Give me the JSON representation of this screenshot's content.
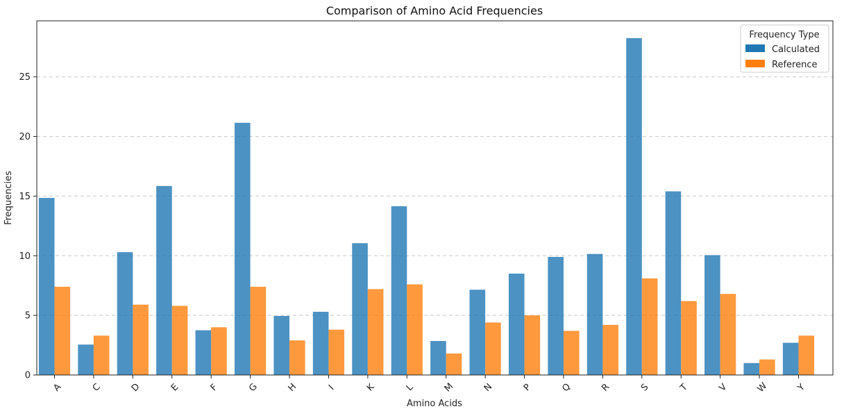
{
  "chart_data": {
    "type": "bar",
    "title": "Comparison of Amino Acid Frequencies",
    "xlabel": "Amino Acids",
    "ylabel": "Frequencies",
    "categories": [
      "A",
      "C",
      "D",
      "E",
      "F",
      "G",
      "H",
      "I",
      "K",
      "L",
      "M",
      "N",
      "P",
      "Q",
      "R",
      "S",
      "T",
      "V",
      "W",
      "Y"
    ],
    "series": [
      {
        "name": "Calculated",
        "color": "#1f77b4",
        "values": [
          14.85,
          2.55,
          10.3,
          15.85,
          3.75,
          21.15,
          4.95,
          5.3,
          11.05,
          14.15,
          2.85,
          7.15,
          8.5,
          9.9,
          10.15,
          28.25,
          15.4,
          10.05,
          1.0,
          2.7
        ]
      },
      {
        "name": "Reference",
        "color": "#ff7f0e",
        "values": [
          7.4,
          3.3,
          5.9,
          5.8,
          4.0,
          7.4,
          2.9,
          3.8,
          7.2,
          7.6,
          1.8,
          4.4,
          5.0,
          3.7,
          4.2,
          8.1,
          6.2,
          6.8,
          1.3,
          3.3
        ]
      }
    ],
    "ylim": [
      0,
      29.7
    ],
    "yticks": [
      0,
      5,
      10,
      15,
      20,
      25
    ],
    "grid": "y-dashed",
    "legend": {
      "title": "Frequency Type",
      "position": "top-right"
    }
  }
}
